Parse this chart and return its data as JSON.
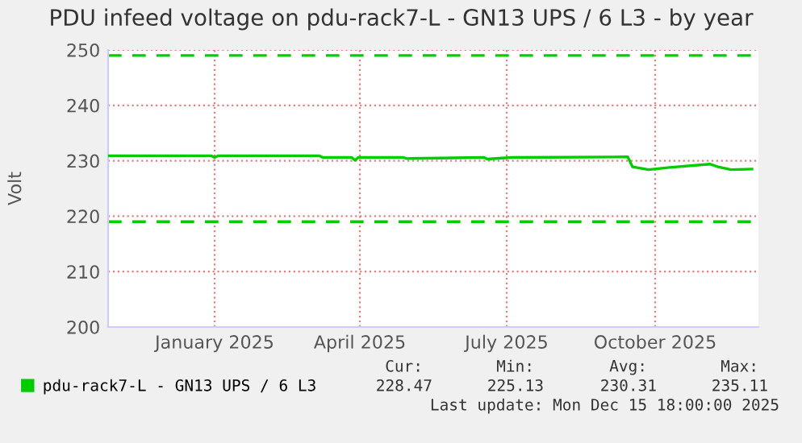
{
  "chart_data": {
    "type": "line",
    "title": "PDU infeed voltage on pdu-rack7-L - GN13 UPS / 6 L3 - by year",
    "ylabel": "Volt",
    "x": [
      "2024-11-11",
      "2025-01-14",
      "2025-01-16",
      "2025-01-18",
      "2025-03-22",
      "2025-03-24",
      "2025-04-11",
      "2025-04-13",
      "2025-04-15",
      "2025-05-13",
      "2025-05-15",
      "2025-07-02",
      "2025-07-04",
      "2025-07-19",
      "2025-09-29",
      "2025-10-02",
      "2025-10-12",
      "2025-10-25",
      "2025-11-19",
      "2025-11-24",
      "2025-12-02",
      "2025-12-15"
    ],
    "series": [
      {
        "name": "pdu-rack7-L - GN13 UPS / 6 L3",
        "color": "#00cc00",
        "values": [
          230.9,
          230.9,
          230.6,
          230.9,
          230.9,
          230.6,
          230.6,
          230.1,
          230.6,
          230.6,
          230.4,
          230.6,
          230.3,
          230.6,
          230.7,
          228.9,
          228.4,
          228.8,
          229.4,
          228.9,
          228.4,
          228.5
        ]
      }
    ],
    "xlim": [
      "2024-11-11",
      "2025-12-19"
    ],
    "xticks": [
      {
        "value": "2025-01-16",
        "label": "January 2025"
      },
      {
        "value": "2025-04-16",
        "label": "April 2025"
      },
      {
        "value": "2025-07-16",
        "label": "July 2025"
      },
      {
        "value": "2025-10-16",
        "label": "October 2025"
      }
    ],
    "ylim": [
      200,
      250
    ],
    "yticks": [
      200,
      210,
      220,
      230,
      240,
      250
    ],
    "ref_lines": [
      {
        "axis": "y",
        "value": 249,
        "color": "#00cc00",
        "line_style": "dashed"
      },
      {
        "axis": "y",
        "value": 219,
        "color": "#00cc00",
        "line_style": "dashed"
      }
    ],
    "grid": true,
    "legend": "bottom",
    "marker": "none",
    "line_style": "solid",
    "annotations": [
      "Cur:",
      "Min:",
      "Avg:",
      "Max:",
      "228.47",
      "225.13",
      "230.31",
      "235.11",
      "Last update: Mon Dec 15 18:00:00 2025"
    ]
  }
}
